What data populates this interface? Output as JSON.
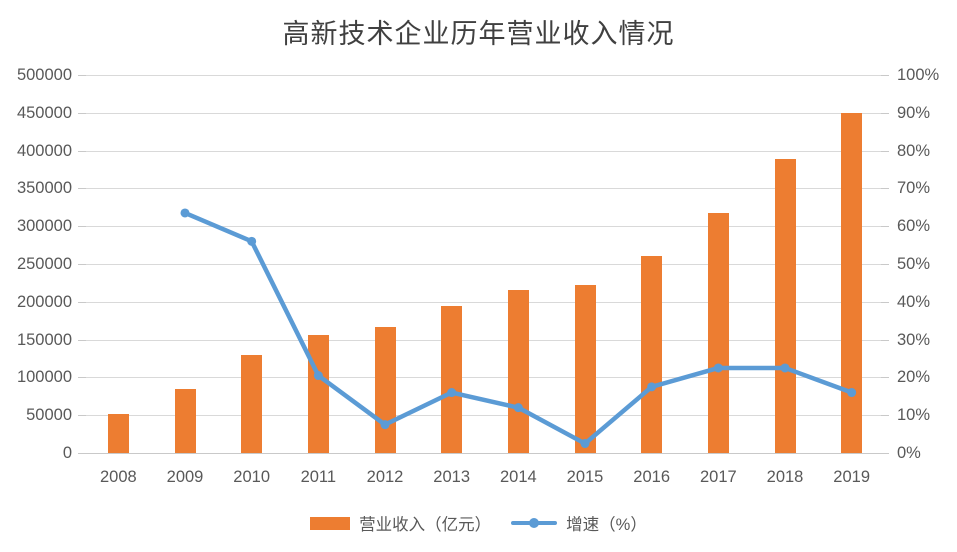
{
  "chart_data": {
    "type": "combo-bar-line",
    "title": "高新技术企业历年营业收入情况",
    "categories": [
      "2008",
      "2009",
      "2010",
      "2011",
      "2012",
      "2013",
      "2014",
      "2015",
      "2016",
      "2017",
      "2018",
      "2019"
    ],
    "series": [
      {
        "name": "营业收入（亿元）",
        "type": "bar",
        "axis": "left",
        "color": "#ED7D31",
        "values": [
          52000,
          85000,
          130000,
          156000,
          167000,
          194000,
          216000,
          222000,
          260000,
          318000,
          389000,
          450000
        ]
      },
      {
        "name": "增速（%）",
        "type": "line",
        "axis": "right",
        "color": "#5B9BD5",
        "values": [
          null,
          63.5,
          56,
          20.5,
          7.5,
          16,
          12,
          2.5,
          17.5,
          22.5,
          22.5,
          16
        ]
      }
    ],
    "left_axis": {
      "min": 0,
      "max": 500000,
      "step": 50000,
      "tick_labels": [
        "0",
        "50000",
        "100000",
        "150000",
        "200000",
        "250000",
        "300000",
        "350000",
        "400000",
        "450000",
        "500000"
      ]
    },
    "right_axis": {
      "min": 0,
      "max": 100,
      "step": 10,
      "tick_labels": [
        "0%",
        "10%",
        "20%",
        "30%",
        "40%",
        "50%",
        "60%",
        "70%",
        "80%",
        "90%",
        "100%"
      ]
    },
    "legend_position": "bottom",
    "grid": true,
    "colors": {
      "gridline": "#D9D9D9",
      "axis_line": "#C9C9C9",
      "tick_text": "#595959",
      "title_text": "#404040",
      "background": "#FFFFFF"
    }
  }
}
